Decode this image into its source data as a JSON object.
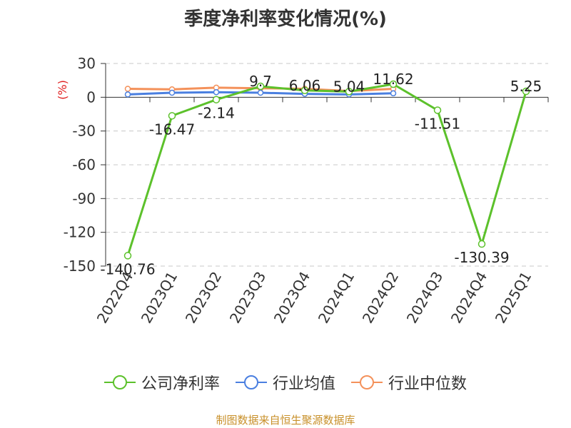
{
  "title": "季度净利率变化情况(%)",
  "footer": "制图数据来自恒生聚源数据库",
  "chart_data": {
    "type": "line",
    "title": "季度净利率变化情况(%)",
    "ylabel": "(%)",
    "ylim": [
      -150,
      30
    ],
    "yticks": [
      30,
      0,
      -30,
      -60,
      -90,
      -120,
      -150
    ],
    "grid": true,
    "legend_position": "bottom",
    "categories": [
      "2022Q4",
      "2023Q1",
      "2023Q2",
      "2023Q3",
      "2023Q4",
      "2024Q1",
      "2024Q2",
      "2024Q3",
      "2024Q4",
      "2025Q1"
    ],
    "series": [
      {
        "name": "公司净利率",
        "color": "#5cc12b",
        "values": [
          -140.76,
          -16.47,
          -2.14,
          9.7,
          6.06,
          5.04,
          11.62,
          -11.51,
          -130.39,
          5.25
        ],
        "labels": [
          "-140.76",
          "-16.47",
          "-2.14",
          "9.7",
          "6.06",
          "5.04",
          "11.62",
          "-11.51",
          "-130.39",
          "5.25"
        ]
      },
      {
        "name": "行业均值",
        "color": "#4a7fe0",
        "values": [
          2.5,
          4.0,
          4.5,
          4.0,
          3.0,
          2.5,
          3.5,
          null,
          null,
          null
        ]
      },
      {
        "name": "行业中位数",
        "color": "#f4915a",
        "values": [
          7.5,
          7.0,
          8.5,
          8.0,
          7.5,
          5.5,
          7.5,
          null,
          null,
          null
        ]
      }
    ]
  }
}
